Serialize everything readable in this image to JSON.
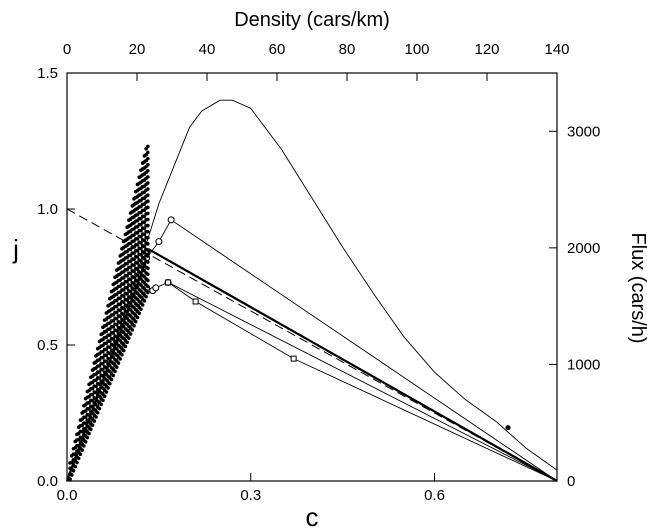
{
  "chart_data": {
    "type": "scatter",
    "axes": {
      "bottom": {
        "label": "c",
        "range": [
          0,
          0.8
        ],
        "ticks": [
          0.0,
          0.3,
          0.6
        ],
        "tick_labels": [
          "0.0",
          "0.3",
          "0.6"
        ]
      },
      "left": {
        "label": "j",
        "range": [
          0,
          1.5
        ],
        "ticks": [
          0.0,
          0.5,
          1.0,
          1.5
        ],
        "tick_labels": [
          "0.0",
          "0.5",
          "1.0",
          "1.5"
        ]
      },
      "top": {
        "label": "Density (cars/km)",
        "range": [
          0,
          140
        ],
        "ticks": [
          0,
          20,
          40,
          60,
          80,
          100,
          120,
          140
        ],
        "tick_labels": [
          "0",
          "20",
          "40",
          "60",
          "80",
          "100",
          "120",
          "140"
        ]
      },
      "right": {
        "label": "Flux (cars/h)",
        "range": [
          0,
          3500
        ],
        "ticks": [
          0,
          1000,
          2000,
          3000
        ],
        "tick_labels": [
          "0",
          "1000",
          "2000",
          "3000"
        ]
      }
    },
    "grid": false,
    "series": [
      {
        "style": "dashed-line",
        "x": [
          0.0,
          0.8
        ],
        "y": [
          1.0,
          0.0
        ]
      },
      {
        "style": "bold-line",
        "x": [
          0.0,
          0.135,
          0.8
        ],
        "y": [
          0.0,
          0.85,
          0.0
        ]
      },
      {
        "style": "thin-curve",
        "x": [
          0.0,
          0.05,
          0.1,
          0.15,
          0.2,
          0.22,
          0.25,
          0.27,
          0.3,
          0.35,
          0.4,
          0.45,
          0.5,
          0.55,
          0.6,
          0.65,
          0.7,
          0.75,
          0.8
        ],
        "y": [
          0.0,
          0.31,
          0.66,
          1.02,
          1.3,
          1.36,
          1.4,
          1.4,
          1.37,
          1.22,
          1.04,
          0.86,
          0.69,
          0.53,
          0.4,
          0.3,
          0.22,
          0.12,
          0.04
        ]
      },
      {
        "style": "line-circles",
        "x": [
          0.0,
          0.13,
          0.15,
          0.17,
          0.8
        ],
        "y": [
          0.0,
          0.82,
          0.88,
          0.96,
          0.0
        ]
      },
      {
        "style": "line-circles",
        "x": [
          0.0,
          0.13,
          0.14,
          0.145,
          0.165,
          0.8
        ],
        "y": [
          0.0,
          0.71,
          0.7,
          0.71,
          0.73,
          0.0
        ]
      },
      {
        "style": "line-squares",
        "x": [
          0.165,
          0.21,
          0.37,
          0.8
        ],
        "y": [
          0.73,
          0.66,
          0.45,
          0.0
        ]
      },
      {
        "style": "scatter-dots",
        "band": {
          "x_start": 0.005,
          "x_end": 0.132,
          "y_low_slope": 5.4,
          "y_high_slope": 9.3,
          "y_max": 1.23
        }
      }
    ]
  }
}
